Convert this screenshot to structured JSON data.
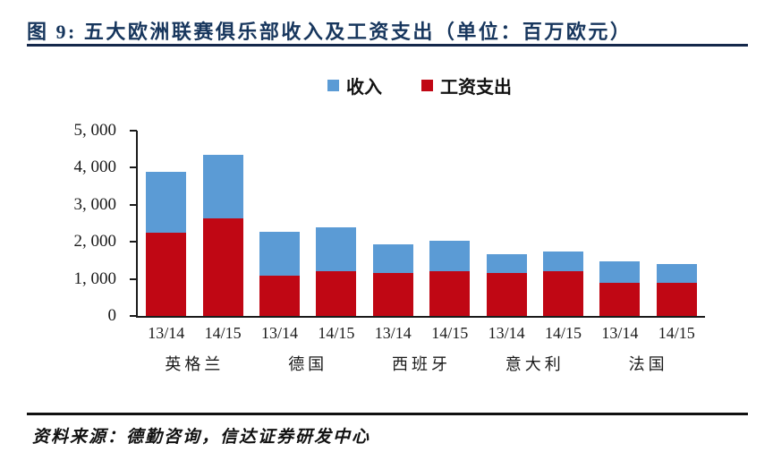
{
  "title": "图 9:  五大欧洲联赛俱乐部收入及工资支出（单位：百万欧元）",
  "source": "资料来源：德勤咨询，信达证券研发中心",
  "colors": {
    "revenue": "#5B9BD5",
    "wages": "#C00714",
    "title_text": "#17365D",
    "rule": "#14284B",
    "axis": "#1a1a1a"
  },
  "chart_data": {
    "type": "bar",
    "bar_style": "overlay-front-red",
    "title": "五大欧洲联赛俱乐部收入及工资支出",
    "unit": "百万欧元",
    "legend_position": "top-center",
    "grid": false,
    "ylim": [
      0,
      5000
    ],
    "y_ticks": [
      {
        "value": 5000,
        "label": "5, 000"
      },
      {
        "value": 4000,
        "label": "4, 000"
      },
      {
        "value": 3000,
        "label": "3, 000"
      },
      {
        "value": 2000,
        "label": "2, 000"
      },
      {
        "value": 1000,
        "label": "1, 000"
      },
      {
        "value": 0,
        "label": "0"
      }
    ],
    "categories": [
      "13/14",
      "14/15",
      "13/14",
      "14/15",
      "13/14",
      "14/15",
      "13/14",
      "14/15",
      "13/14",
      "14/15"
    ],
    "groups": [
      {
        "label": "英格兰",
        "span": [
          0,
          1
        ]
      },
      {
        "label": "德国",
        "span": [
          2,
          3
        ]
      },
      {
        "label": "西班牙",
        "span": [
          4,
          5
        ]
      },
      {
        "label": "意大利",
        "span": [
          6,
          7
        ]
      },
      {
        "label": "法国",
        "span": [
          8,
          9
        ]
      }
    ],
    "series": [
      {
        "name": "收入",
        "color": "#5B9BD5",
        "values": [
          3890,
          4350,
          2270,
          2380,
          1930,
          2020,
          1660,
          1740,
          1470,
          1390
        ]
      },
      {
        "name": "工资支出",
        "color": "#C00714",
        "values": [
          2250,
          2640,
          1080,
          1200,
          1150,
          1220,
          1160,
          1220,
          900,
          900
        ]
      }
    ]
  }
}
